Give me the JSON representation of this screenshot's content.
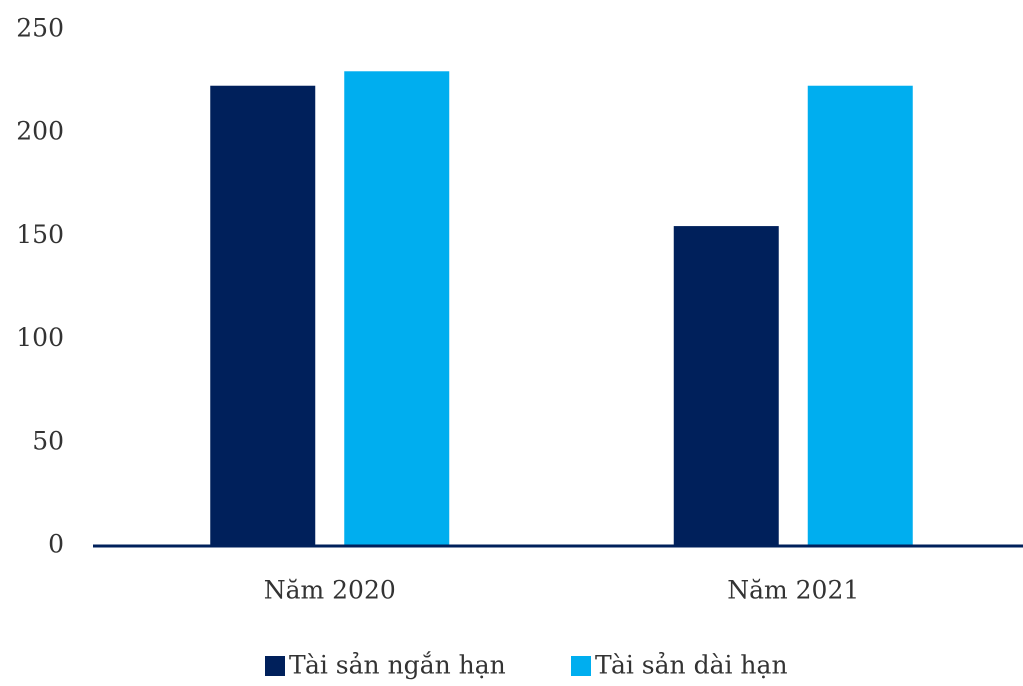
{
  "chart_data": {
    "type": "bar",
    "categories": [
      "Năm 2020",
      "Năm 2021"
    ],
    "series": [
      {
        "name": "Tài sản ngắn hạn",
        "color": "#00205b",
        "values": [
          223,
          155
        ]
      },
      {
        "name": "Tài sản dài hạn",
        "color": "#00aeef",
        "values": [
          230,
          223
        ]
      }
    ],
    "ylim": [
      0,
      250
    ],
    "yticks": [
      0,
      50,
      100,
      150,
      200,
      250
    ],
    "grid": false
  }
}
